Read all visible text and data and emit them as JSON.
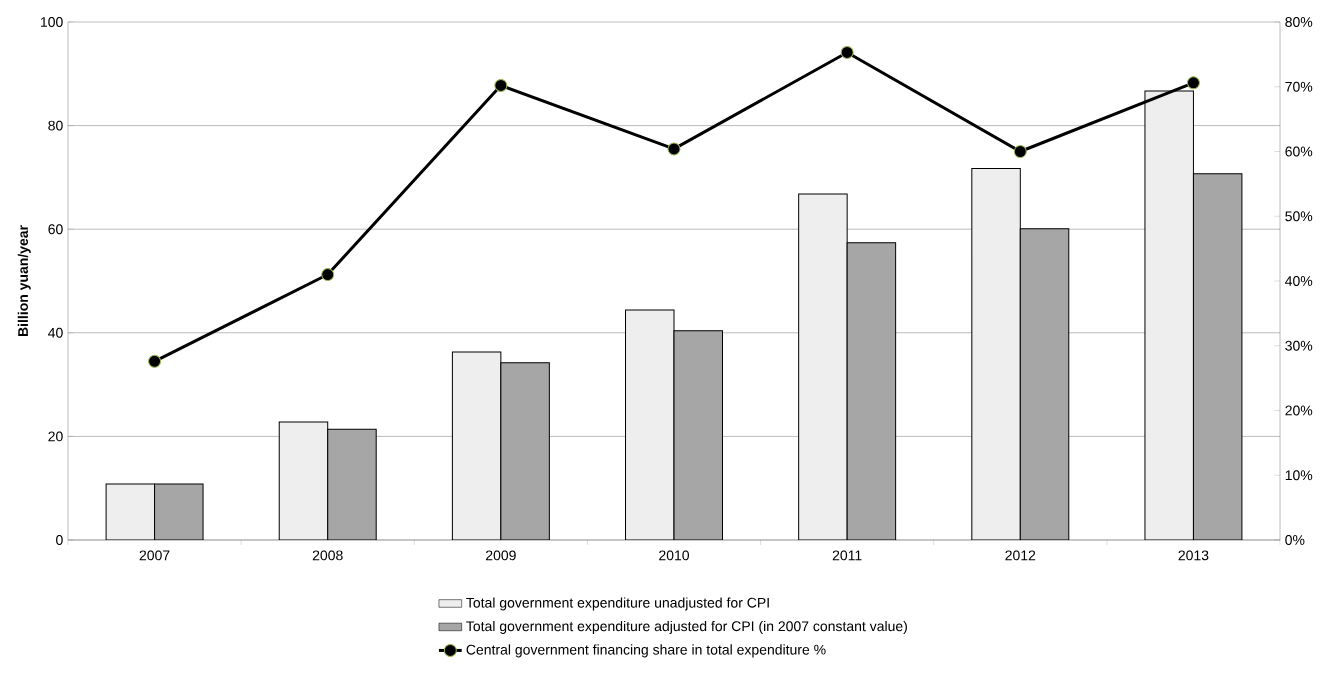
{
  "chart_data": {
    "type": "bar",
    "ylabel": "Billion yuan/year",
    "categories": [
      "2007",
      "2008",
      "2009",
      "2010",
      "2011",
      "2012",
      "2013"
    ],
    "series": [
      {
        "name": "Total government expenditure unadjusted for CPI",
        "color": "#eeeeee",
        "values": [
          10.8,
          22.8,
          36.3,
          44.4,
          66.8,
          71.7,
          86.7
        ]
      },
      {
        "name": "Total government expenditure adjusted for CPI (in 2007 constant value)",
        "color": "#a6a6a6",
        "values": [
          10.8,
          21.4,
          34.2,
          40.4,
          57.4,
          60.1,
          70.7
        ]
      },
      {
        "name": "Central government financing share in total expenditure %",
        "type": "line",
        "axis": "y2",
        "color": "#000000",
        "marker": "circle",
        "values": [
          27.6,
          41.0,
          70.2,
          60.4,
          75.3,
          60.0,
          70.6
        ]
      }
    ],
    "ylim": [
      0,
      100
    ],
    "yticks": [
      0,
      20,
      40,
      60,
      80,
      100
    ],
    "y2lim": [
      0,
      80
    ],
    "y2ticks": [
      {
        "value": 0,
        "label": "0%"
      },
      {
        "value": 10,
        "label": "10%"
      },
      {
        "value": 20,
        "label": "20%"
      },
      {
        "value": 30,
        "label": "30%"
      },
      {
        "value": 40,
        "label": "40%"
      },
      {
        "value": 50,
        "label": "50%"
      },
      {
        "value": 60,
        "label": "60%"
      },
      {
        "value": 70,
        "label": "70%"
      },
      {
        "value": 80,
        "label": "80%"
      }
    ],
    "grid": "y",
    "legend": "bottom"
  }
}
